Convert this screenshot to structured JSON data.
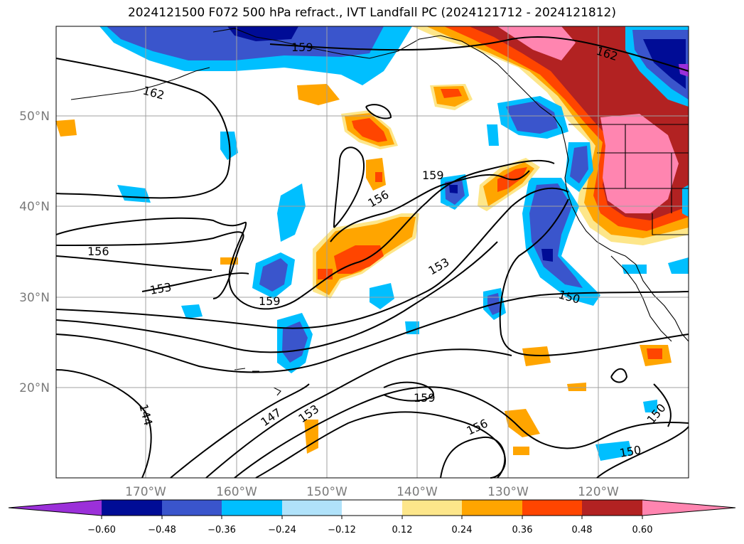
{
  "title": "2024121500 F072 500 hPa refract., IVT Landfall PC (2024121712 - 2024121812)",
  "lat_labels": [
    "50°N",
    "40°N",
    "30°N",
    "20°N"
  ],
  "lon_labels": [
    "170°W",
    "160°W",
    "150°W",
    "140°W",
    "130°W",
    "120°W"
  ],
  "contour_labels": [
    "162",
    "159",
    "162",
    "156",
    "159",
    "156",
    "153",
    "159",
    "153",
    "150",
    "144",
    "147",
    "153",
    "159",
    "156",
    "150",
    "150"
  ],
  "colorbar": {
    "ticks": [
      "−0.60",
      "−0.48",
      "−0.36",
      "−0.24",
      "−0.12",
      "0.12",
      "0.24",
      "0.36",
      "0.48",
      "0.60"
    ],
    "colors": [
      "#9b30d9",
      "#000c96",
      "#3a55cc",
      "#00bfff",
      "#b0e2fa",
      "#ffffff",
      "#fde68a",
      "#ffa500",
      "#ff4500",
      "#b22222",
      "#ff85b0"
    ]
  },
  "colors": {
    "grid": "#a0a0a0",
    "contour": "#000000",
    "axis_label": "#7a7a7a"
  }
}
